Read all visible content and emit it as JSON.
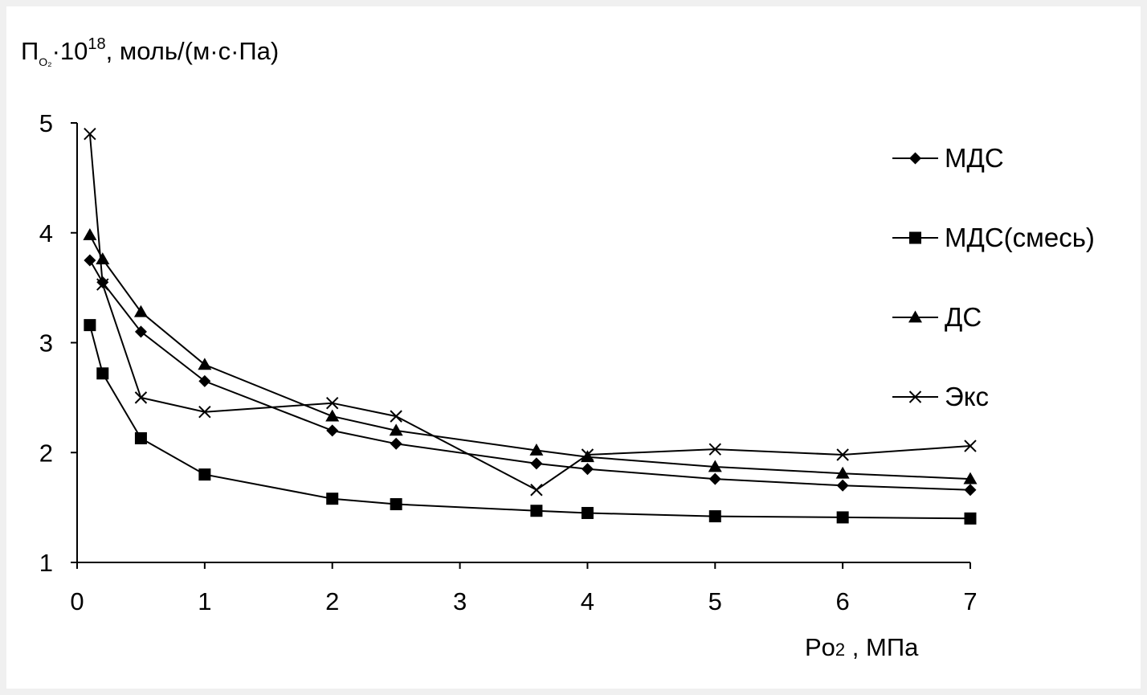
{
  "chart_data": {
    "type": "line",
    "ylabel": {
      "main": "П",
      "sub": "O₂",
      "mult": "·10",
      "exp": "18",
      "unit": ", моль/(м·с·Па)"
    },
    "xlabel": {
      "main": "Po",
      "sub": "2",
      "unit": " , МПа"
    },
    "xlim": [
      0,
      7
    ],
    "ylim": [
      1,
      5
    ],
    "xticks": [
      0,
      1,
      2,
      3,
      4,
      5,
      6,
      7
    ],
    "yticks": [
      1,
      2,
      3,
      4,
      5
    ],
    "grid": false,
    "legend_position": "right",
    "series": [
      {
        "name": "МДС",
        "marker": "diamond",
        "x": [
          0.1,
          0.2,
          0.5,
          1,
          2,
          2.5,
          3.6,
          4,
          5,
          6,
          7
        ],
        "y": [
          3.75,
          3.55,
          3.1,
          2.65,
          2.2,
          2.08,
          1.9,
          1.85,
          1.76,
          1.7,
          1.66
        ]
      },
      {
        "name": "МДС(смесь)",
        "marker": "square",
        "x": [
          0.1,
          0.2,
          0.5,
          1,
          2,
          2.5,
          3.6,
          4,
          5,
          6,
          7
        ],
        "y": [
          3.16,
          2.72,
          2.13,
          1.8,
          1.58,
          1.53,
          1.47,
          1.45,
          1.42,
          1.41,
          1.4
        ]
      },
      {
        "name": "ДС",
        "marker": "triangle",
        "x": [
          0.1,
          0.2,
          0.5,
          1,
          2,
          2.5,
          3.6,
          4,
          5,
          6,
          7
        ],
        "y": [
          3.98,
          3.76,
          3.28,
          2.8,
          2.33,
          2.2,
          2.02,
          1.96,
          1.87,
          1.81,
          1.76
        ]
      },
      {
        "name": "Экс",
        "marker": "x",
        "x": [
          0.1,
          0.2,
          0.5,
          1,
          2,
          2.5,
          3.6,
          4,
          5,
          6,
          7
        ],
        "y": [
          4.9,
          3.53,
          2.5,
          2.37,
          2.45,
          2.33,
          1.66,
          1.98,
          2.03,
          1.98,
          2.06
        ]
      }
    ]
  }
}
